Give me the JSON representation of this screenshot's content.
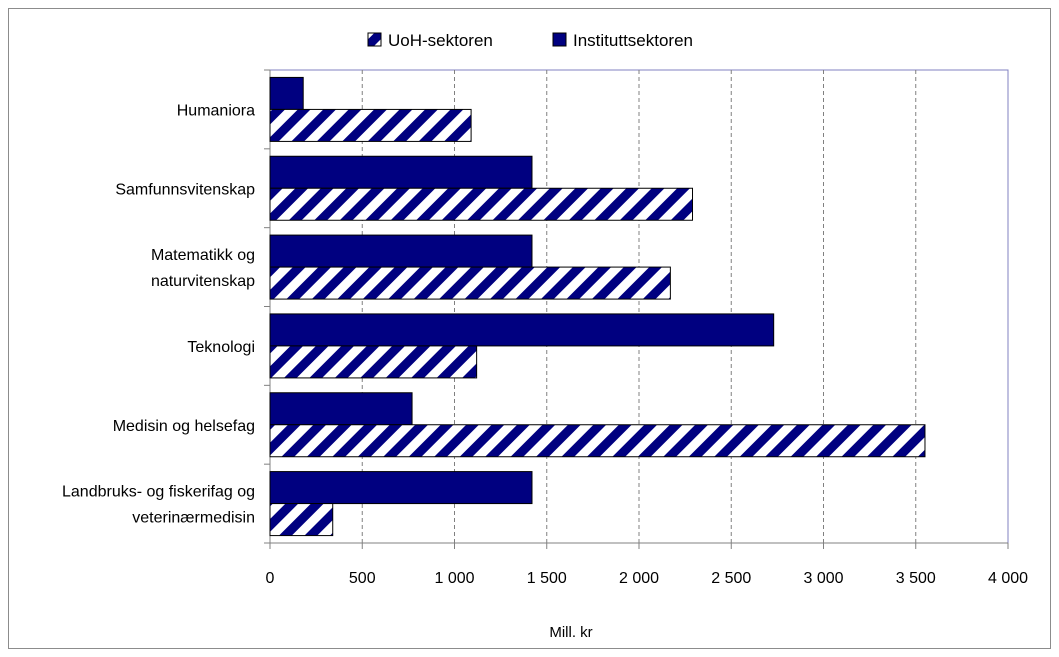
{
  "chart_data": {
    "type": "bar",
    "orientation": "horizontal",
    "categories": [
      [
        "Humaniora"
      ],
      [
        "Samfunnsvitenskap"
      ],
      [
        "Matematikk og",
        "naturvitenskap"
      ],
      [
        "Teknologi"
      ],
      [
        "Medisin og helsefag"
      ],
      [
        "Landbruks- og fiskerifag og",
        "veterinærmedisin"
      ]
    ],
    "series": [
      {
        "name": "UoH-sektoren",
        "values": [
          1090,
          2290,
          2170,
          1120,
          3550,
          340
        ],
        "color": "#000080",
        "pattern": "diagonal-stripes"
      },
      {
        "name": "Instituttsektoren",
        "values": [
          180,
          1420,
          1420,
          2730,
          770,
          1420
        ],
        "color": "#000080",
        "pattern": "solid"
      }
    ],
    "xticks": [
      "0",
      "500",
      "1 000",
      "1 500",
      "2 000",
      "2 500",
      "3 000",
      "3 500",
      "4 000"
    ],
    "xlim": [
      0,
      4000
    ],
    "xlabel": "Mill. kr",
    "grid": "vertical-dashed",
    "legend_position": "top"
  }
}
